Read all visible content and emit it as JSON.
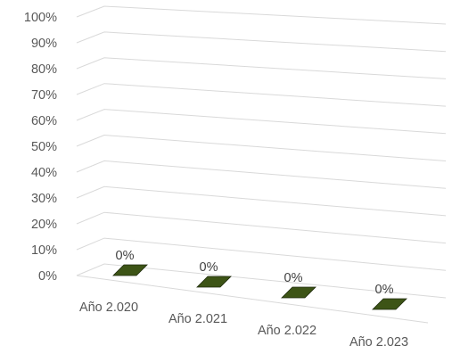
{
  "chart_data": {
    "type": "bar",
    "title": "",
    "xlabel": "",
    "ylabel": "",
    "categories": [
      "Año 2.020",
      "Año 2.021",
      "Año 2.022",
      "Año 2.023"
    ],
    "series": [
      {
        "values": [
          0,
          0,
          0,
          0
        ]
      }
    ],
    "data_labels": [
      "0%",
      "0%",
      "0%",
      "0%"
    ],
    "ylim": [
      0,
      100
    ],
    "y_unit": "%",
    "y_ticks": [
      "0%",
      "10%",
      "20%",
      "30%",
      "40%",
      "50%",
      "60%",
      "70%",
      "80%",
      "90%",
      "100%"
    ],
    "grid": true,
    "legend": "none",
    "three_d": true,
    "colors": {
      "bar": "#3d5416",
      "gridline": "#d9d9d9",
      "label": "#595959"
    }
  }
}
